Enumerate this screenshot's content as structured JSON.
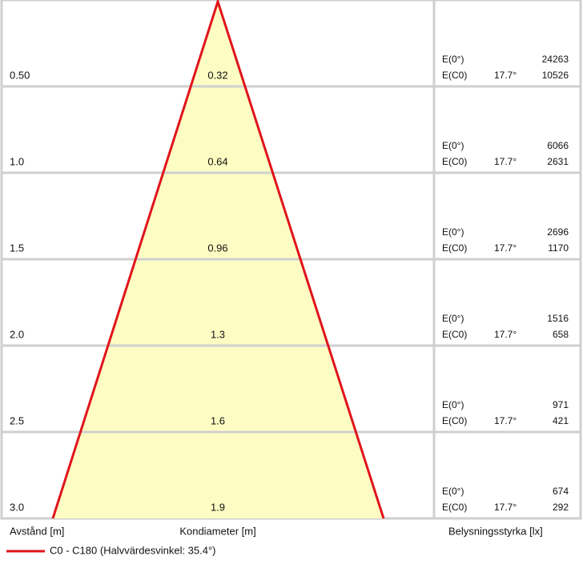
{
  "rows": [
    {
      "distance": "0.50",
      "diameter": "0.32",
      "e0_label": "E(0°)",
      "e0": 24263,
      "ec0_label": "E(C0)",
      "angle": "17.7°",
      "ec0": 10526
    },
    {
      "distance": "1.0",
      "diameter": "0.64",
      "e0_label": "E(0°)",
      "e0": 6066,
      "ec0_label": "E(C0)",
      "angle": "17.7°",
      "ec0": 2631
    },
    {
      "distance": "1.5",
      "diameter": "0.96",
      "e0_label": "E(0°)",
      "e0": 2696,
      "ec0_label": "E(C0)",
      "angle": "17.7°",
      "ec0": 1170
    },
    {
      "distance": "2.0",
      "diameter": "1.3",
      "e0_label": "E(0°)",
      "e0": 1516,
      "ec0_label": "E(C0)",
      "angle": "17.7°",
      "ec0": 658
    },
    {
      "distance": "2.5",
      "diameter": "1.6",
      "e0_label": "E(0°)",
      "e0": 971,
      "ec0_label": "E(C0)",
      "angle": "17.7°",
      "ec0": 421
    },
    {
      "distance": "3.0",
      "diameter": "1.9",
      "e0_label": "E(0°)",
      "e0": 674,
      "ec0_label": "E(C0)",
      "angle": "17.7°",
      "ec0": 292
    }
  ],
  "footer": {
    "distance_label": "Avstånd [m]",
    "diameter_label": "Kondiameter [m]",
    "illuminance_label": "Belysningsstyrka [lx]"
  },
  "legend": {
    "label": "C0 - C180 (Halvvärdesvinkel: 35.4°)"
  }
}
